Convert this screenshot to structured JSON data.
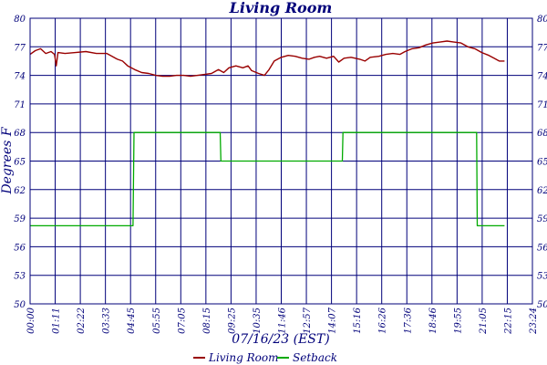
{
  "chart_data": {
    "type": "line",
    "title": "Living Room",
    "xlabel": "07/16/23 (EST)",
    "ylabel": "Degrees F",
    "x_range_minutes": [
      0,
      1440
    ],
    "ylim": [
      50,
      80
    ],
    "yticks": [
      "50",
      "53",
      "56",
      "59",
      "62",
      "65",
      "68",
      "71",
      "74",
      "77",
      "80"
    ],
    "xticks": [
      "00:00",
      "01:11",
      "02:22",
      "03:33",
      "04:45",
      "05:55",
      "07:05",
      "08:15",
      "09:25",
      "10:35",
      "11:46",
      "12:57",
      "14:07",
      "15:16",
      "16:26",
      "17:36",
      "18:46",
      "19:55",
      "21:05",
      "22:15",
      "23:24"
    ],
    "grid": true,
    "legend_position": "bottom-center",
    "series": [
      {
        "name": "Living Room",
        "color": "#990000",
        "points": [
          [
            0,
            76.2
          ],
          [
            15,
            76.6
          ],
          [
            30,
            76.8
          ],
          [
            45,
            76.3
          ],
          [
            60,
            76.5
          ],
          [
            70,
            76.2
          ],
          [
            75,
            75.0
          ],
          [
            80,
            76.4
          ],
          [
            100,
            76.3
          ],
          [
            130,
            76.4
          ],
          [
            160,
            76.5
          ],
          [
            190,
            76.3
          ],
          [
            220,
            76.3
          ],
          [
            240,
            75.9
          ],
          [
            250,
            75.7
          ],
          [
            265,
            75.5
          ],
          [
            280,
            75.0
          ],
          [
            300,
            74.6
          ],
          [
            320,
            74.3
          ],
          [
            340,
            74.2
          ],
          [
            360,
            74.0
          ],
          [
            380,
            73.9
          ],
          [
            400,
            73.9
          ],
          [
            420,
            74.0
          ],
          [
            440,
            74.0
          ],
          [
            460,
            73.9
          ],
          [
            480,
            74.0
          ],
          [
            500,
            74.1
          ],
          [
            520,
            74.2
          ],
          [
            540,
            74.6
          ],
          [
            555,
            74.3
          ],
          [
            570,
            74.8
          ],
          [
            590,
            75.0
          ],
          [
            610,
            74.8
          ],
          [
            625,
            75.0
          ],
          [
            635,
            74.5
          ],
          [
            655,
            74.2
          ],
          [
            672,
            74.0
          ],
          [
            685,
            74.6
          ],
          [
            700,
            75.5
          ],
          [
            720,
            75.9
          ],
          [
            740,
            76.1
          ],
          [
            760,
            76.0
          ],
          [
            780,
            75.8
          ],
          [
            800,
            75.7
          ],
          [
            815,
            75.9
          ],
          [
            830,
            76.0
          ],
          [
            850,
            75.8
          ],
          [
            870,
            76.0
          ],
          [
            885,
            75.4
          ],
          [
            900,
            75.8
          ],
          [
            920,
            75.9
          ],
          [
            945,
            75.7
          ],
          [
            960,
            75.5
          ],
          [
            975,
            75.9
          ],
          [
            1000,
            76.0
          ],
          [
            1020,
            76.2
          ],
          [
            1040,
            76.3
          ],
          [
            1060,
            76.2
          ],
          [
            1075,
            76.5
          ],
          [
            1095,
            76.8
          ],
          [
            1115,
            76.9
          ],
          [
            1135,
            77.2
          ],
          [
            1155,
            77.4
          ],
          [
            1175,
            77.5
          ],
          [
            1195,
            77.6
          ],
          [
            1215,
            77.5
          ],
          [
            1235,
            77.4
          ],
          [
            1255,
            77.0
          ],
          [
            1275,
            76.8
          ],
          [
            1295,
            76.4
          ],
          [
            1315,
            76.1
          ],
          [
            1330,
            75.8
          ],
          [
            1345,
            75.5
          ],
          [
            1360,
            75.5
          ]
        ]
      },
      {
        "name": "Setback",
        "color": "#00aa00",
        "points": [
          [
            0,
            58.2
          ],
          [
            295,
            58.2
          ],
          [
            298,
            68
          ],
          [
            545,
            68
          ],
          [
            547,
            65
          ],
          [
            895,
            65
          ],
          [
            897,
            68
          ],
          [
            1280,
            68
          ],
          [
            1282,
            58.2
          ],
          [
            1360,
            58.2
          ]
        ]
      }
    ]
  }
}
